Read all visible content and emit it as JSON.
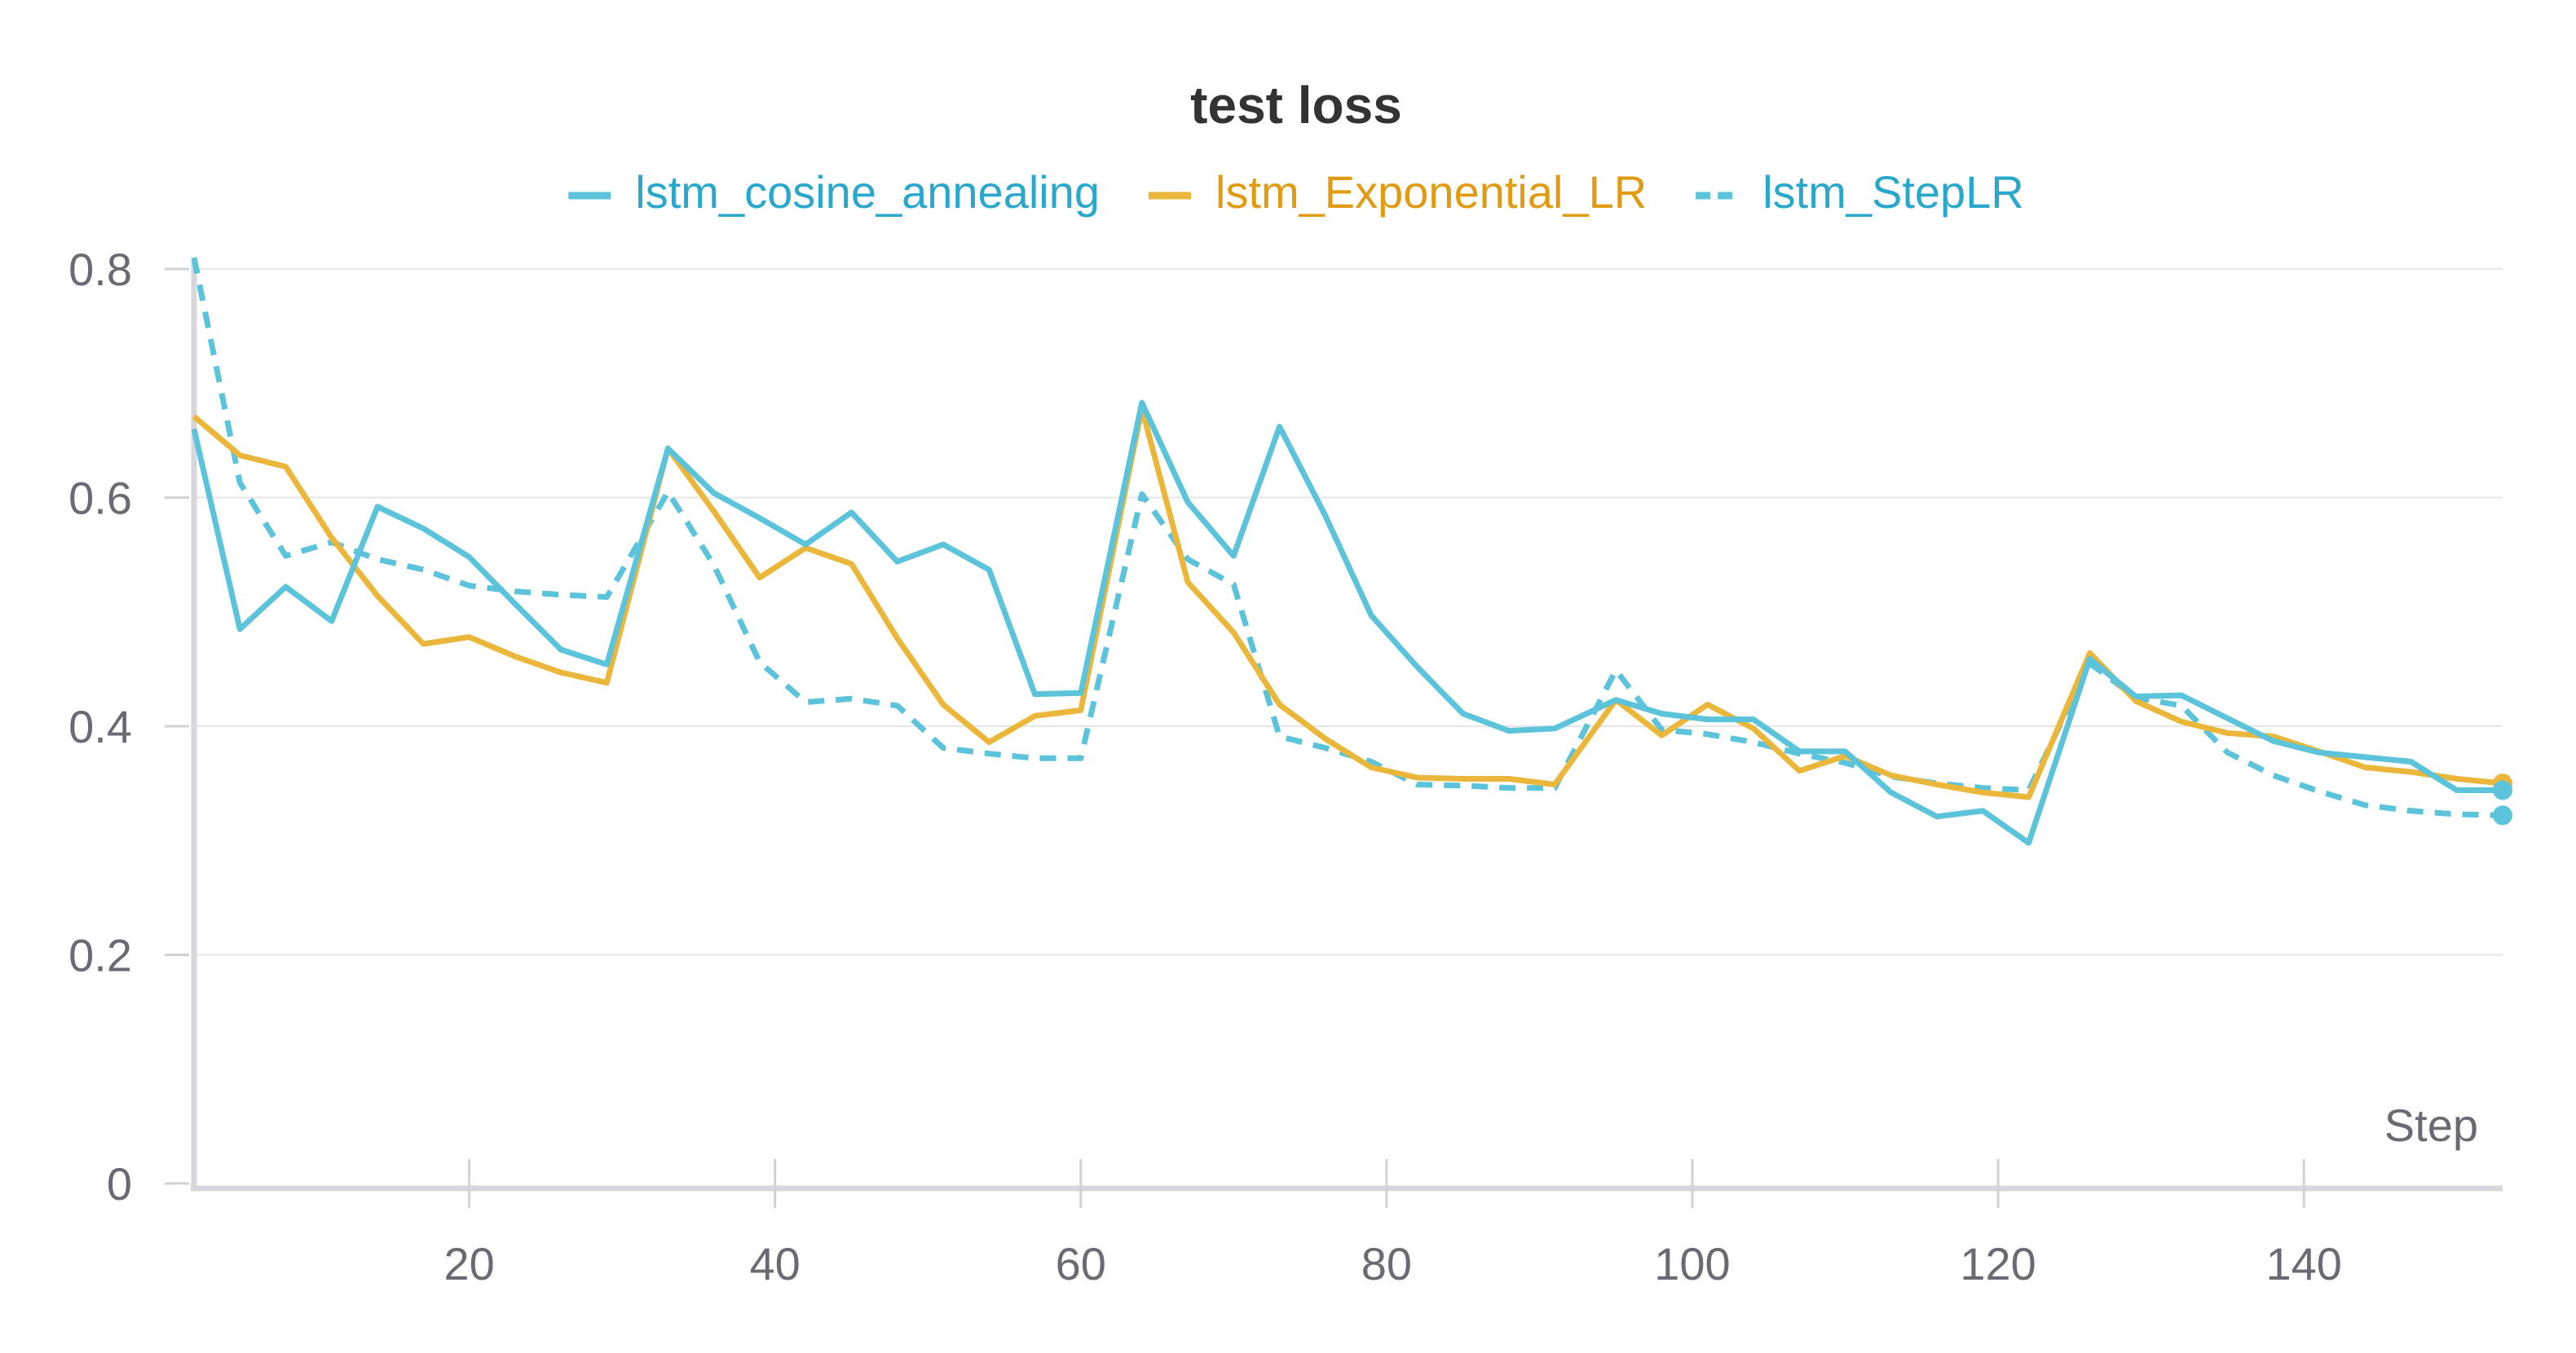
{
  "chart_data": {
    "type": "line",
    "title": "test loss",
    "xlabel": "Step",
    "ylabel": "",
    "xlim": [
      2,
      153
    ],
    "ylim": [
      0,
      0.8
    ],
    "x_ticks": [
      20,
      40,
      60,
      80,
      100,
      120,
      140
    ],
    "y_ticks": [
      0,
      0.2,
      0.4,
      0.6,
      0.8
    ],
    "x_tick_labels": [
      "20",
      "40",
      "60",
      "80",
      "100",
      "120",
      "140"
    ],
    "y_tick_labels": [
      "0",
      "0.2",
      "0.4",
      "0.6",
      "0.8"
    ],
    "grid": true,
    "legend_position": "top",
    "x": [
      2,
      5,
      8,
      11,
      14,
      17,
      20,
      23,
      26,
      29,
      33,
      36,
      39,
      42,
      45,
      48,
      51,
      54,
      57,
      60,
      64,
      67,
      70,
      73,
      76,
      79,
      82,
      85,
      88,
      91,
      95,
      98,
      101,
      104,
      107,
      110,
      113,
      116,
      119,
      122,
      126,
      129,
      132,
      135,
      138,
      141,
      144,
      147,
      150,
      153
    ],
    "series": [
      {
        "name": "lstm_cosine_annealing",
        "color": "#5bc3da",
        "dash": "solid",
        "values": [
          0.66,
          0.485,
          0.522,
          0.492,
          0.592,
          0.573,
          0.548,
          0.507,
          0.467,
          0.454,
          0.643,
          0.604,
          0.582,
          0.559,
          0.587,
          0.544,
          0.559,
          0.537,
          0.428,
          0.429,
          0.683,
          0.596,
          0.549,
          0.662,
          0.584,
          0.497,
          0.452,
          0.411,
          0.396,
          0.398,
          0.423,
          0.411,
          0.406,
          0.406,
          0.378,
          0.378,
          0.342,
          0.321,
          0.326,
          0.298,
          0.459,
          0.426,
          0.427,
          0.407,
          0.387,
          0.377,
          0.373,
          0.369,
          0.344,
          0.344
        ]
      },
      {
        "name": "lstm_Exponential_LR",
        "color": "#eab73a",
        "dash": "solid",
        "values": [
          0.671,
          0.637,
          0.627,
          0.565,
          0.514,
          0.472,
          0.478,
          0.461,
          0.447,
          0.438,
          0.643,
          0.588,
          0.53,
          0.556,
          0.542,
          0.477,
          0.419,
          0.386,
          0.409,
          0.414,
          0.678,
          0.526,
          0.482,
          0.419,
          0.389,
          0.364,
          0.355,
          0.354,
          0.354,
          0.349,
          0.423,
          0.392,
          0.419,
          0.398,
          0.361,
          0.374,
          0.357,
          0.349,
          0.342,
          0.338,
          0.464,
          0.422,
          0.404,
          0.394,
          0.391,
          0.378,
          0.364,
          0.36,
          0.354,
          0.35
        ]
      },
      {
        "name": "lstm_StepLR",
        "color": "#5bc3da",
        "dash": "dashed",
        "values": [
          0.81,
          0.613,
          0.549,
          0.561,
          0.546,
          0.537,
          0.523,
          0.518,
          0.515,
          0.513,
          0.605,
          0.541,
          0.456,
          0.421,
          0.424,
          0.418,
          0.381,
          0.376,
          0.372,
          0.372,
          0.603,
          0.546,
          0.524,
          0.391,
          0.381,
          0.369,
          0.349,
          0.348,
          0.346,
          0.346,
          0.449,
          0.397,
          0.393,
          0.386,
          0.376,
          0.368,
          0.356,
          0.35,
          0.346,
          0.344,
          0.455,
          0.425,
          0.418,
          0.377,
          0.357,
          0.343,
          0.331,
          0.326,
          0.323,
          0.322
        ]
      }
    ]
  }
}
